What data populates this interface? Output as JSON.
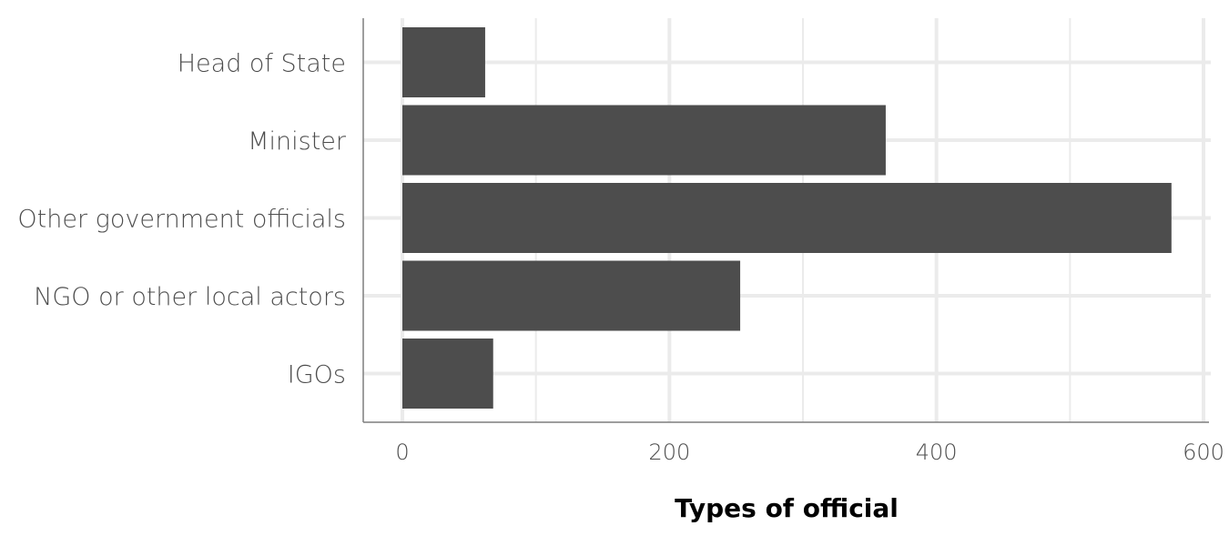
{
  "chart_data": {
    "type": "bar",
    "orientation": "horizontal",
    "categories": [
      "Head of State",
      "Minister",
      "Other government officials",
      "NGO or other local actors",
      "IGOs"
    ],
    "values": [
      62,
      362,
      576,
      253,
      68
    ],
    "xlabel": "Types of official",
    "ylabel": "",
    "xlim": [
      0,
      600
    ],
    "x_ticks": [
      0,
      200,
      400,
      600
    ],
    "x_tick_labels": [
      "0",
      "200",
      "400",
      "600"
    ],
    "grid": true,
    "legend": "none",
    "bar_color": "#4d4d4d"
  }
}
